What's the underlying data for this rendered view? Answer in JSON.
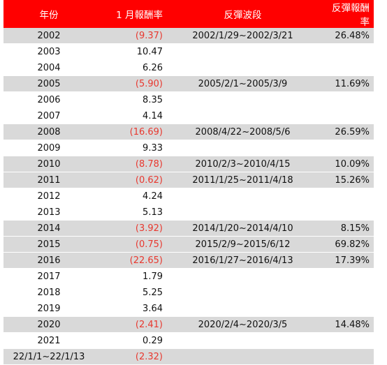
{
  "header": {
    "year": "年份",
    "jan_return": "1 月報酬率",
    "rebound_period": "反彈波段",
    "rebound_return": "反彈報酬率"
  },
  "rows": [
    {
      "year": "2002",
      "jan": "(9.37)",
      "negative": true,
      "period": "2002/1/29~2002/3/21",
      "rebound": "26.48%",
      "shaded": true
    },
    {
      "year": "2003",
      "jan": "10.47",
      "negative": false,
      "period": "",
      "rebound": "",
      "shaded": false
    },
    {
      "year": "2004",
      "jan": "6.26",
      "negative": false,
      "period": "",
      "rebound": "",
      "shaded": false
    },
    {
      "year": "2005",
      "jan": "(5.90)",
      "negative": true,
      "period": "2005/2/1~2005/3/9",
      "rebound": "11.69%",
      "shaded": true
    },
    {
      "year": "2006",
      "jan": "8.35",
      "negative": false,
      "period": "",
      "rebound": "",
      "shaded": false
    },
    {
      "year": "2007",
      "jan": "4.14",
      "negative": false,
      "period": "",
      "rebound": "",
      "shaded": false
    },
    {
      "year": "2008",
      "jan": "(16.69)",
      "negative": true,
      "period": "2008/4/22~2008/5/6",
      "rebound": "26.59%",
      "shaded": true
    },
    {
      "year": "2009",
      "jan": "9.33",
      "negative": false,
      "period": "",
      "rebound": "",
      "shaded": false
    },
    {
      "year": "2010",
      "jan": "(8.78)",
      "negative": true,
      "period": "2010/2/3~2010/4/15",
      "rebound": "10.09%",
      "shaded": true
    },
    {
      "year": "2011",
      "jan": "(0.62)",
      "negative": true,
      "period": "2011/1/25~2011/4/18",
      "rebound": "15.26%",
      "shaded": true
    },
    {
      "year": "2012",
      "jan": "4.24",
      "negative": false,
      "period": "",
      "rebound": "",
      "shaded": false
    },
    {
      "year": "2013",
      "jan": "5.13",
      "negative": false,
      "period": "",
      "rebound": "",
      "shaded": false
    },
    {
      "year": "2014",
      "jan": "(3.92)",
      "negative": true,
      "period": "2014/1/20~2014/4/10",
      "rebound": "8.15%",
      "shaded": true
    },
    {
      "year": "2015",
      "jan": "(0.75)",
      "negative": true,
      "period": "2015/2/9~2015/6/12",
      "rebound": "69.82%",
      "shaded": true
    },
    {
      "year": "2016",
      "jan": "(22.65)",
      "negative": true,
      "period": "2016/1/27~2016/4/13",
      "rebound": "17.39%",
      "shaded": true
    },
    {
      "year": "2017",
      "jan": "1.79",
      "negative": false,
      "period": "",
      "rebound": "",
      "shaded": false
    },
    {
      "year": "2018",
      "jan": "5.25",
      "negative": false,
      "period": "",
      "rebound": "",
      "shaded": false
    },
    {
      "year": "2019",
      "jan": "3.64",
      "negative": false,
      "period": "",
      "rebound": "",
      "shaded": false
    },
    {
      "year": "2020",
      "jan": "(2.41)",
      "negative": true,
      "period": "2020/2/4~2020/3/5",
      "rebound": "14.48%",
      "shaded": true
    },
    {
      "year": "2021",
      "jan": "0.29",
      "negative": false,
      "period": "",
      "rebound": "",
      "shaded": false
    },
    {
      "year": "22/1/1~22/1/13",
      "jan": "(2.32)",
      "negative": true,
      "period": "",
      "rebound": "",
      "shaded": true
    }
  ],
  "colors": {
    "header_bg": "#ff0000",
    "header_text": "#ffffff",
    "shade": "#d9d9d9",
    "negative_text": "#e8382f"
  }
}
